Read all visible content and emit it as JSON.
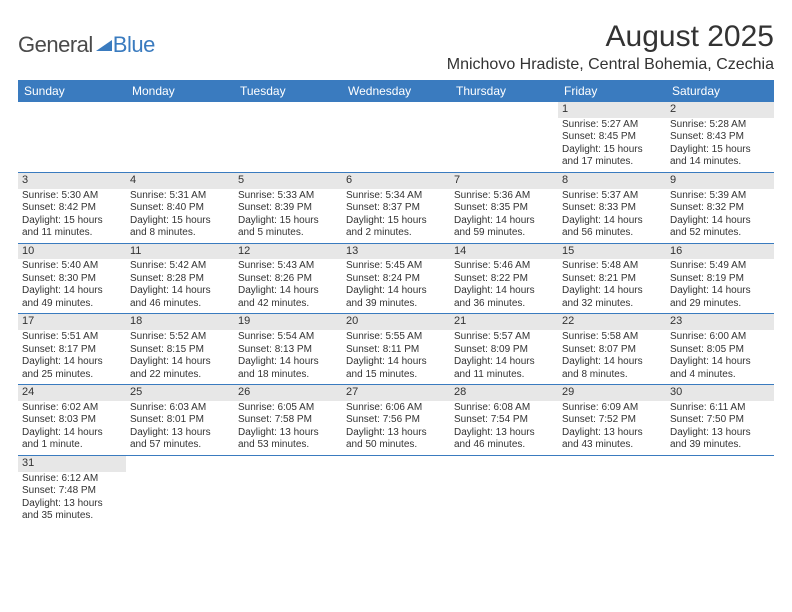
{
  "logo": {
    "part1": "General",
    "part2": "Blue"
  },
  "title": "August 2025",
  "location": "Mnichovo Hradiste, Central Bohemia, Czechia",
  "colors": {
    "header_bg": "#3a7bbf",
    "header_text": "#ffffff",
    "daynum_bg": "#e7e7e7",
    "row_divider": "#3a7bbf",
    "text": "#333333",
    "logo_blue": "#3a7bbf",
    "logo_gray": "#4a4a4a",
    "background": "#ffffff"
  },
  "fonts": {
    "title_size": 30,
    "location_size": 16,
    "dayheader_size": 12,
    "cell_size": 10
  },
  "day_names": [
    "Sunday",
    "Monday",
    "Tuesday",
    "Wednesday",
    "Thursday",
    "Friday",
    "Saturday"
  ],
  "weeks": [
    [
      {
        "n": "",
        "sunrise": "",
        "sunset": "",
        "daylight": ""
      },
      {
        "n": "",
        "sunrise": "",
        "sunset": "",
        "daylight": ""
      },
      {
        "n": "",
        "sunrise": "",
        "sunset": "",
        "daylight": ""
      },
      {
        "n": "",
        "sunrise": "",
        "sunset": "",
        "daylight": ""
      },
      {
        "n": "",
        "sunrise": "",
        "sunset": "",
        "daylight": ""
      },
      {
        "n": "1",
        "sunrise": "Sunrise: 5:27 AM",
        "sunset": "Sunset: 8:45 PM",
        "daylight": "Daylight: 15 hours and 17 minutes."
      },
      {
        "n": "2",
        "sunrise": "Sunrise: 5:28 AM",
        "sunset": "Sunset: 8:43 PM",
        "daylight": "Daylight: 15 hours and 14 minutes."
      }
    ],
    [
      {
        "n": "3",
        "sunrise": "Sunrise: 5:30 AM",
        "sunset": "Sunset: 8:42 PM",
        "daylight": "Daylight: 15 hours and 11 minutes."
      },
      {
        "n": "4",
        "sunrise": "Sunrise: 5:31 AM",
        "sunset": "Sunset: 8:40 PM",
        "daylight": "Daylight: 15 hours and 8 minutes."
      },
      {
        "n": "5",
        "sunrise": "Sunrise: 5:33 AM",
        "sunset": "Sunset: 8:39 PM",
        "daylight": "Daylight: 15 hours and 5 minutes."
      },
      {
        "n": "6",
        "sunrise": "Sunrise: 5:34 AM",
        "sunset": "Sunset: 8:37 PM",
        "daylight": "Daylight: 15 hours and 2 minutes."
      },
      {
        "n": "7",
        "sunrise": "Sunrise: 5:36 AM",
        "sunset": "Sunset: 8:35 PM",
        "daylight": "Daylight: 14 hours and 59 minutes."
      },
      {
        "n": "8",
        "sunrise": "Sunrise: 5:37 AM",
        "sunset": "Sunset: 8:33 PM",
        "daylight": "Daylight: 14 hours and 56 minutes."
      },
      {
        "n": "9",
        "sunrise": "Sunrise: 5:39 AM",
        "sunset": "Sunset: 8:32 PM",
        "daylight": "Daylight: 14 hours and 52 minutes."
      }
    ],
    [
      {
        "n": "10",
        "sunrise": "Sunrise: 5:40 AM",
        "sunset": "Sunset: 8:30 PM",
        "daylight": "Daylight: 14 hours and 49 minutes."
      },
      {
        "n": "11",
        "sunrise": "Sunrise: 5:42 AM",
        "sunset": "Sunset: 8:28 PM",
        "daylight": "Daylight: 14 hours and 46 minutes."
      },
      {
        "n": "12",
        "sunrise": "Sunrise: 5:43 AM",
        "sunset": "Sunset: 8:26 PM",
        "daylight": "Daylight: 14 hours and 42 minutes."
      },
      {
        "n": "13",
        "sunrise": "Sunrise: 5:45 AM",
        "sunset": "Sunset: 8:24 PM",
        "daylight": "Daylight: 14 hours and 39 minutes."
      },
      {
        "n": "14",
        "sunrise": "Sunrise: 5:46 AM",
        "sunset": "Sunset: 8:22 PM",
        "daylight": "Daylight: 14 hours and 36 minutes."
      },
      {
        "n": "15",
        "sunrise": "Sunrise: 5:48 AM",
        "sunset": "Sunset: 8:21 PM",
        "daylight": "Daylight: 14 hours and 32 minutes."
      },
      {
        "n": "16",
        "sunrise": "Sunrise: 5:49 AM",
        "sunset": "Sunset: 8:19 PM",
        "daylight": "Daylight: 14 hours and 29 minutes."
      }
    ],
    [
      {
        "n": "17",
        "sunrise": "Sunrise: 5:51 AM",
        "sunset": "Sunset: 8:17 PM",
        "daylight": "Daylight: 14 hours and 25 minutes."
      },
      {
        "n": "18",
        "sunrise": "Sunrise: 5:52 AM",
        "sunset": "Sunset: 8:15 PM",
        "daylight": "Daylight: 14 hours and 22 minutes."
      },
      {
        "n": "19",
        "sunrise": "Sunrise: 5:54 AM",
        "sunset": "Sunset: 8:13 PM",
        "daylight": "Daylight: 14 hours and 18 minutes."
      },
      {
        "n": "20",
        "sunrise": "Sunrise: 5:55 AM",
        "sunset": "Sunset: 8:11 PM",
        "daylight": "Daylight: 14 hours and 15 minutes."
      },
      {
        "n": "21",
        "sunrise": "Sunrise: 5:57 AM",
        "sunset": "Sunset: 8:09 PM",
        "daylight": "Daylight: 14 hours and 11 minutes."
      },
      {
        "n": "22",
        "sunrise": "Sunrise: 5:58 AM",
        "sunset": "Sunset: 8:07 PM",
        "daylight": "Daylight: 14 hours and 8 minutes."
      },
      {
        "n": "23",
        "sunrise": "Sunrise: 6:00 AM",
        "sunset": "Sunset: 8:05 PM",
        "daylight": "Daylight: 14 hours and 4 minutes."
      }
    ],
    [
      {
        "n": "24",
        "sunrise": "Sunrise: 6:02 AM",
        "sunset": "Sunset: 8:03 PM",
        "daylight": "Daylight: 14 hours and 1 minute."
      },
      {
        "n": "25",
        "sunrise": "Sunrise: 6:03 AM",
        "sunset": "Sunset: 8:01 PM",
        "daylight": "Daylight: 13 hours and 57 minutes."
      },
      {
        "n": "26",
        "sunrise": "Sunrise: 6:05 AM",
        "sunset": "Sunset: 7:58 PM",
        "daylight": "Daylight: 13 hours and 53 minutes."
      },
      {
        "n": "27",
        "sunrise": "Sunrise: 6:06 AM",
        "sunset": "Sunset: 7:56 PM",
        "daylight": "Daylight: 13 hours and 50 minutes."
      },
      {
        "n": "28",
        "sunrise": "Sunrise: 6:08 AM",
        "sunset": "Sunset: 7:54 PM",
        "daylight": "Daylight: 13 hours and 46 minutes."
      },
      {
        "n": "29",
        "sunrise": "Sunrise: 6:09 AM",
        "sunset": "Sunset: 7:52 PM",
        "daylight": "Daylight: 13 hours and 43 minutes."
      },
      {
        "n": "30",
        "sunrise": "Sunrise: 6:11 AM",
        "sunset": "Sunset: 7:50 PM",
        "daylight": "Daylight: 13 hours and 39 minutes."
      }
    ],
    [
      {
        "n": "31",
        "sunrise": "Sunrise: 6:12 AM",
        "sunset": "Sunset: 7:48 PM",
        "daylight": "Daylight: 13 hours and 35 minutes."
      },
      {
        "n": "",
        "sunrise": "",
        "sunset": "",
        "daylight": ""
      },
      {
        "n": "",
        "sunrise": "",
        "sunset": "",
        "daylight": ""
      },
      {
        "n": "",
        "sunrise": "",
        "sunset": "",
        "daylight": ""
      },
      {
        "n": "",
        "sunrise": "",
        "sunset": "",
        "daylight": ""
      },
      {
        "n": "",
        "sunrise": "",
        "sunset": "",
        "daylight": ""
      },
      {
        "n": "",
        "sunrise": "",
        "sunset": "",
        "daylight": ""
      }
    ]
  ]
}
